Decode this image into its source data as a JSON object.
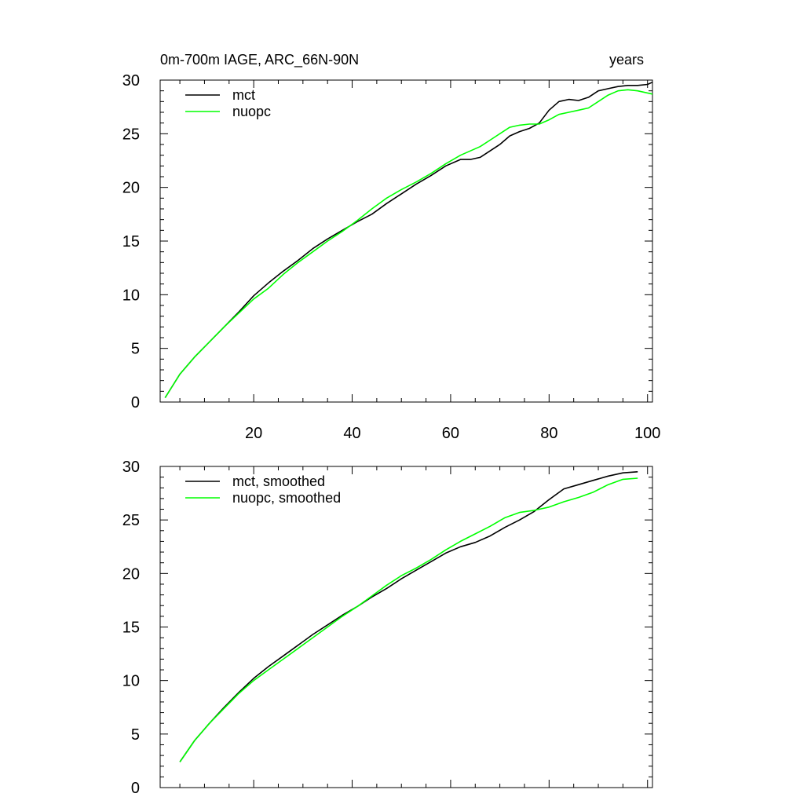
{
  "figure": {
    "title_left": "0m-700m IAGE, ARC_66N-90N",
    "title_right": "years"
  },
  "chart_data": [
    {
      "type": "line",
      "xlim": [
        1,
        101
      ],
      "ylim": [
        0,
        30
      ],
      "x_ticks": [
        20,
        40,
        60,
        80,
        100
      ],
      "y_ticks": [
        0,
        5,
        10,
        15,
        20,
        25,
        30
      ],
      "x_tick_labels": [
        "20",
        "40",
        "60",
        "80",
        "100"
      ],
      "y_tick_labels": [
        "0",
        "5",
        "10",
        "15",
        "20",
        "25",
        "30"
      ],
      "legend_position": "top-left",
      "series": [
        {
          "name": "mct",
          "color": "#000000",
          "x": [
            2,
            5,
            8,
            11,
            14,
            17,
            20,
            23,
            26,
            29,
            32,
            35,
            38,
            41,
            44,
            47,
            50,
            53,
            56,
            59,
            62,
            64,
            66,
            68,
            70,
            72,
            74,
            76,
            78,
            80,
            82,
            84,
            86,
            88,
            90,
            92,
            94,
            96,
            98,
            100,
            101
          ],
          "values": [
            0.4,
            2.6,
            4.2,
            5.6,
            7.0,
            8.4,
            9.9,
            11.1,
            12.2,
            13.2,
            14.3,
            15.2,
            16.0,
            16.8,
            17.5,
            18.5,
            19.4,
            20.3,
            21.1,
            22.0,
            22.6,
            22.6,
            22.8,
            23.4,
            24.0,
            24.8,
            25.2,
            25.5,
            26.0,
            27.2,
            28.0,
            28.2,
            28.1,
            28.4,
            29.0,
            29.2,
            29.4,
            29.5,
            29.5,
            29.6,
            29.8
          ]
        },
        {
          "name": "nuopc",
          "color": "#00ff00",
          "x": [
            2,
            5,
            8,
            11,
            14,
            17,
            20,
            23,
            26,
            29,
            32,
            35,
            38,
            41,
            44,
            47,
            50,
            53,
            56,
            59,
            62,
            64,
            66,
            68,
            70,
            72,
            74,
            76,
            78,
            80,
            82,
            84,
            86,
            88,
            90,
            92,
            94,
            96,
            98,
            101
          ],
          "values": [
            0.4,
            2.6,
            4.2,
            5.6,
            7.0,
            8.3,
            9.6,
            10.6,
            11.9,
            13.0,
            14.0,
            15.0,
            15.9,
            16.9,
            18.0,
            19.0,
            19.8,
            20.5,
            21.3,
            22.2,
            23.0,
            23.4,
            23.8,
            24.4,
            25.0,
            25.6,
            25.8,
            25.9,
            25.9,
            26.3,
            26.8,
            27.0,
            27.2,
            27.4,
            28.0,
            28.6,
            29.0,
            29.1,
            29.0,
            28.7
          ]
        }
      ]
    },
    {
      "type": "line",
      "xlim": [
        1,
        101
      ],
      "ylim": [
        0,
        30
      ],
      "x_ticks": [
        20,
        40,
        60,
        80,
        100
      ],
      "y_ticks": [
        0,
        5,
        10,
        15,
        20,
        25,
        30
      ],
      "x_tick_labels": [],
      "y_tick_labels": [
        "0",
        "5",
        "10",
        "15",
        "20",
        "25",
        "30"
      ],
      "legend_position": "top-left",
      "series": [
        {
          "name": "mct, smoothed",
          "color": "#000000",
          "x": [
            5,
            8,
            11,
            14,
            17,
            20,
            23,
            26,
            29,
            32,
            35,
            38,
            41,
            44,
            47,
            50,
            53,
            56,
            59,
            62,
            65,
            68,
            71,
            74,
            77,
            80,
            83,
            86,
            89,
            92,
            95,
            98
          ],
          "values": [
            2.4,
            4.4,
            6.0,
            7.5,
            8.9,
            10.2,
            11.3,
            12.3,
            13.3,
            14.3,
            15.2,
            16.1,
            16.9,
            17.8,
            18.6,
            19.5,
            20.3,
            21.1,
            21.9,
            22.5,
            22.9,
            23.5,
            24.3,
            25.0,
            25.8,
            26.9,
            27.9,
            28.3,
            28.7,
            29.1,
            29.4,
            29.5
          ]
        },
        {
          "name": "nuopc, smoothed",
          "color": "#00ff00",
          "x": [
            5,
            8,
            11,
            14,
            17,
            20,
            23,
            26,
            29,
            32,
            35,
            38,
            41,
            44,
            47,
            50,
            53,
            56,
            59,
            62,
            65,
            68,
            71,
            74,
            77,
            80,
            83,
            86,
            89,
            92,
            95,
            98
          ],
          "values": [
            2.4,
            4.4,
            6.0,
            7.4,
            8.8,
            10.0,
            11.0,
            12.0,
            13.0,
            14.0,
            15.0,
            16.0,
            16.9,
            17.9,
            18.9,
            19.8,
            20.5,
            21.3,
            22.2,
            23.0,
            23.7,
            24.4,
            25.2,
            25.7,
            25.9,
            26.2,
            26.7,
            27.1,
            27.6,
            28.3,
            28.8,
            28.9
          ]
        }
      ]
    }
  ]
}
